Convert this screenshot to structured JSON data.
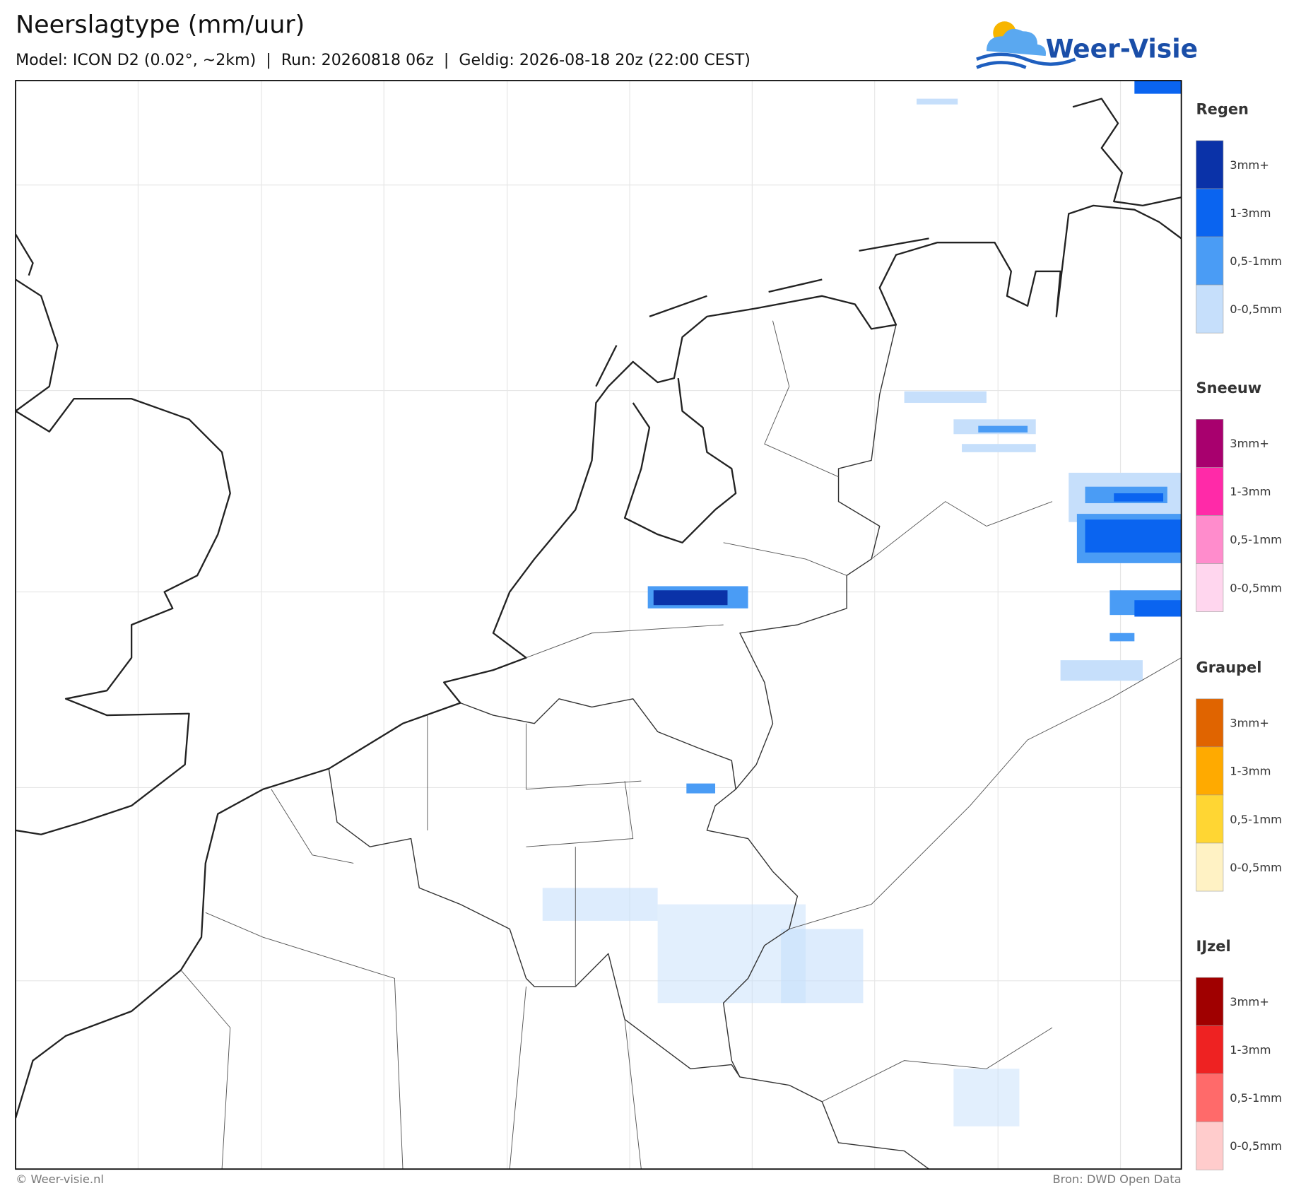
{
  "header": {
    "title": "Neerslagtype (mm/uur)",
    "subtitle": "Model: ICON D2 (0.02°, ~2km)  |  Run: 20260818 06z  |  Geldig: 2026-08-18 20z (22:00 CEST)",
    "logo": "Weer-Visie"
  },
  "legend": [
    {
      "title": "Regen",
      "items": [
        {
          "label": "3mm+",
          "color": "#0a32a8"
        },
        {
          "label": "1-3mm",
          "color": "#0a64f0"
        },
        {
          "label": "0,5-1mm",
          "color": "#4a9cf5"
        },
        {
          "label": "0-0,5mm",
          "color": "#c6dffb"
        }
      ]
    },
    {
      "title": "Sneeuw",
      "items": [
        {
          "label": "3mm+",
          "color": "#a8006e"
        },
        {
          "label": "1-3mm",
          "color": "#ff2aa8"
        },
        {
          "label": "0,5-1mm",
          "color": "#ff8ccc"
        },
        {
          "label": "0-0,5mm",
          "color": "#ffd6ee"
        }
      ]
    },
    {
      "title": "Graupel",
      "items": [
        {
          "label": "3mm+",
          "color": "#e06400"
        },
        {
          "label": "1-3mm",
          "color": "#ffaa00"
        },
        {
          "label": "0,5-1mm",
          "color": "#ffd633"
        },
        {
          "label": "0-0,5mm",
          "color": "#fff2c4"
        }
      ]
    },
    {
      "title": "IJzel",
      "items": [
        {
          "label": "3mm+",
          "color": "#a00000"
        },
        {
          "label": "1-3mm",
          "color": "#ee2222"
        },
        {
          "label": "0,5-1mm",
          "color": "#ff6a6a"
        },
        {
          "label": "0-0,5mm",
          "color": "#ffcccc"
        }
      ]
    }
  ],
  "footer": {
    "left": "© Weer-visie.nl",
    "right": "Bron: DWD Open Data"
  }
}
